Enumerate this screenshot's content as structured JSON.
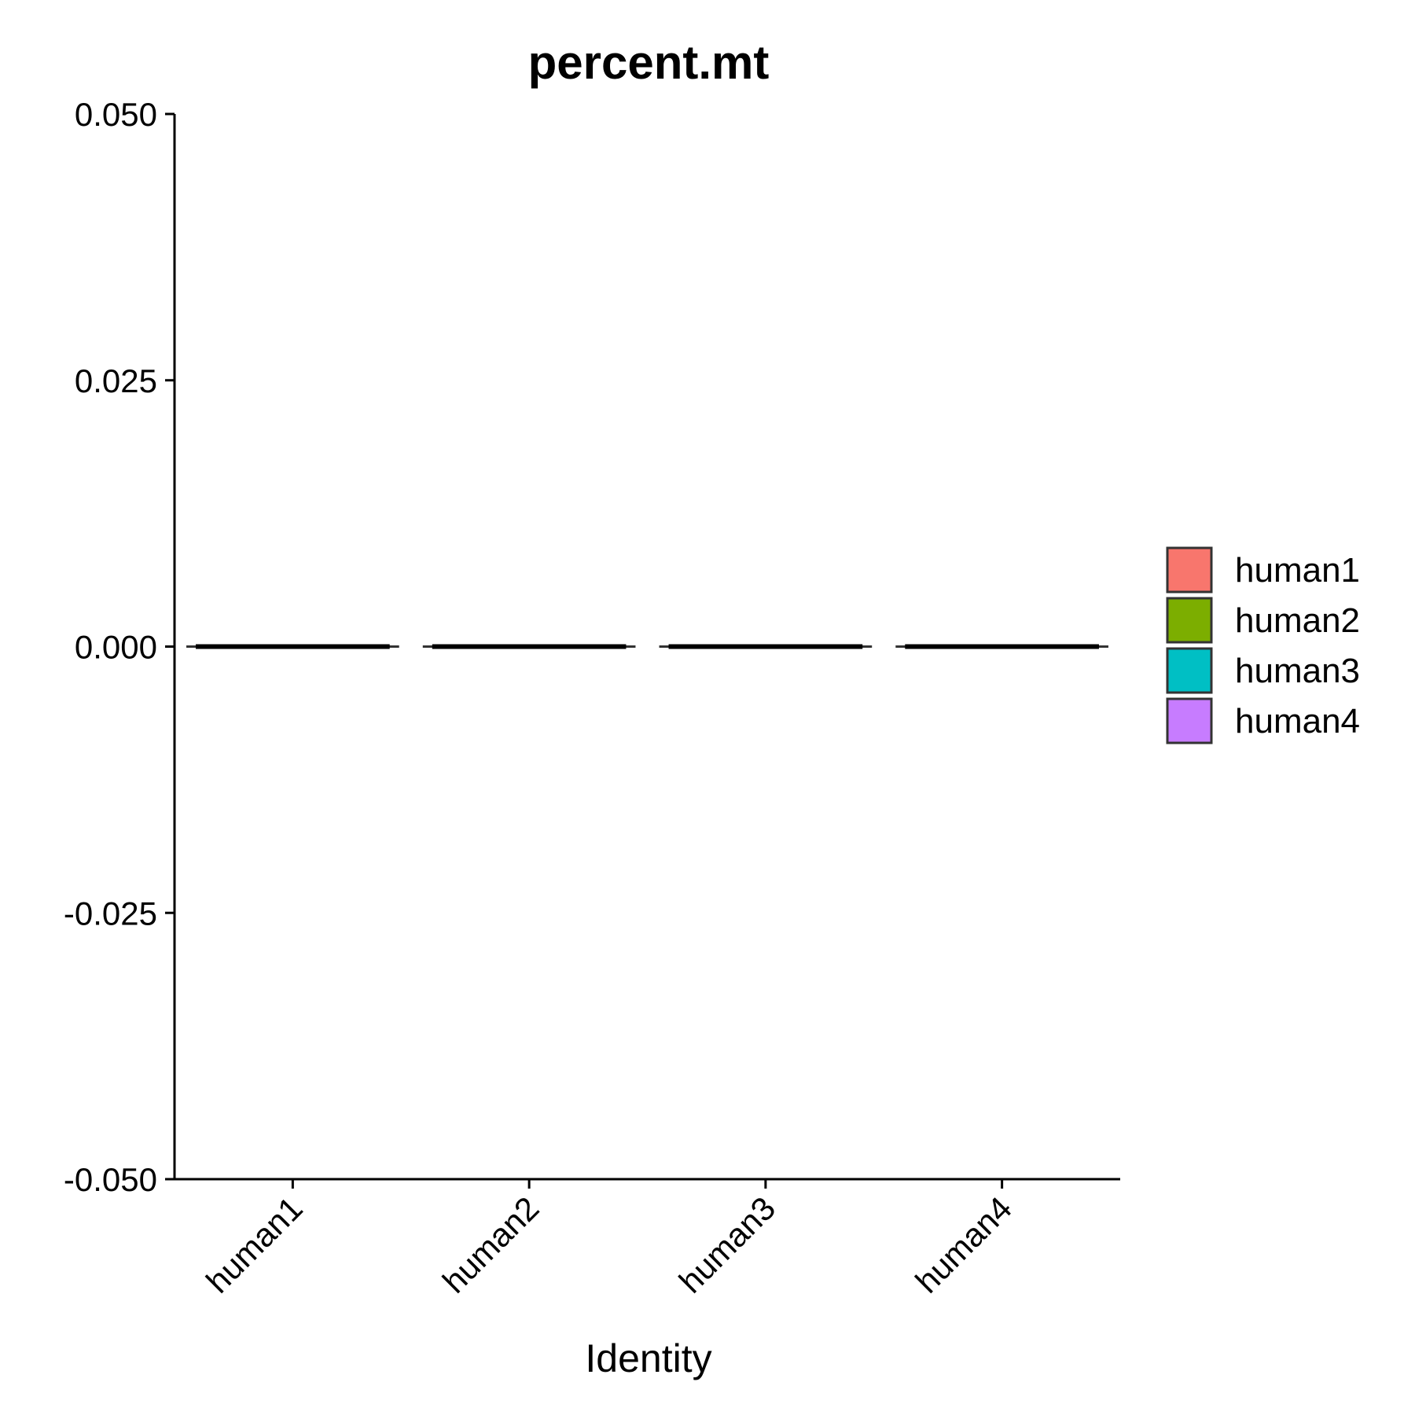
{
  "chart_data": {
    "type": "violin",
    "title": "percent.mt",
    "xlabel": "Identity",
    "ylabel": "",
    "ylim": [
      -0.05,
      0.05
    ],
    "yticks": [
      0.05,
      0.025,
      0.0,
      -0.025,
      -0.05
    ],
    "ytick_labels": [
      "0.050",
      "0.025",
      "0.000",
      "-0.025",
      "-0.050"
    ],
    "categories": [
      "human1",
      "human2",
      "human3",
      "human4"
    ],
    "values": [
      0,
      0,
      0,
      0
    ],
    "colors": [
      "#F8766D",
      "#7CAE00",
      "#00BFC4",
      "#C77CFF"
    ],
    "legend": {
      "position": "right",
      "entries": [
        "human1",
        "human2",
        "human3",
        "human4"
      ]
    },
    "grid": false
  }
}
